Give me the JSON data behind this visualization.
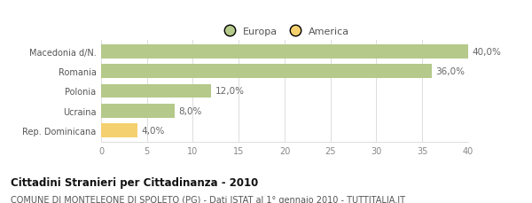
{
  "categories": [
    "Rep. Dominicana",
    "Ucraina",
    "Polonia",
    "Romania",
    "Macedonia d/N."
  ],
  "values": [
    4.0,
    8.0,
    12.0,
    36.0,
    40.0
  ],
  "labels": [
    "4,0%",
    "8,0%",
    "12,0%",
    "36,0%",
    "40,0%"
  ],
  "colors": [
    "#f5d06e",
    "#b5c98a",
    "#b5c98a",
    "#b5c98a",
    "#b5c98a"
  ],
  "legend_items": [
    {
      "label": "Europa",
      "color": "#b5c98a"
    },
    {
      "label": "America",
      "color": "#f5d06e"
    }
  ],
  "xlim": [
    0,
    40
  ],
  "xticks": [
    0,
    5,
    10,
    15,
    20,
    25,
    30,
    35,
    40
  ],
  "title": "Cittadini Stranieri per Cittadinanza - 2010",
  "subtitle": "COMUNE DI MONTELEONE DI SPOLETO (PG) - Dati ISTAT al 1° gennaio 2010 - TUTTITALIA.IT",
  "title_fontsize": 8.5,
  "subtitle_fontsize": 7.0,
  "label_fontsize": 7.5,
  "tick_fontsize": 7.0,
  "legend_fontsize": 8,
  "bar_height": 0.72,
  "background_color": "#ffffff",
  "grid_color": "#dddddd"
}
